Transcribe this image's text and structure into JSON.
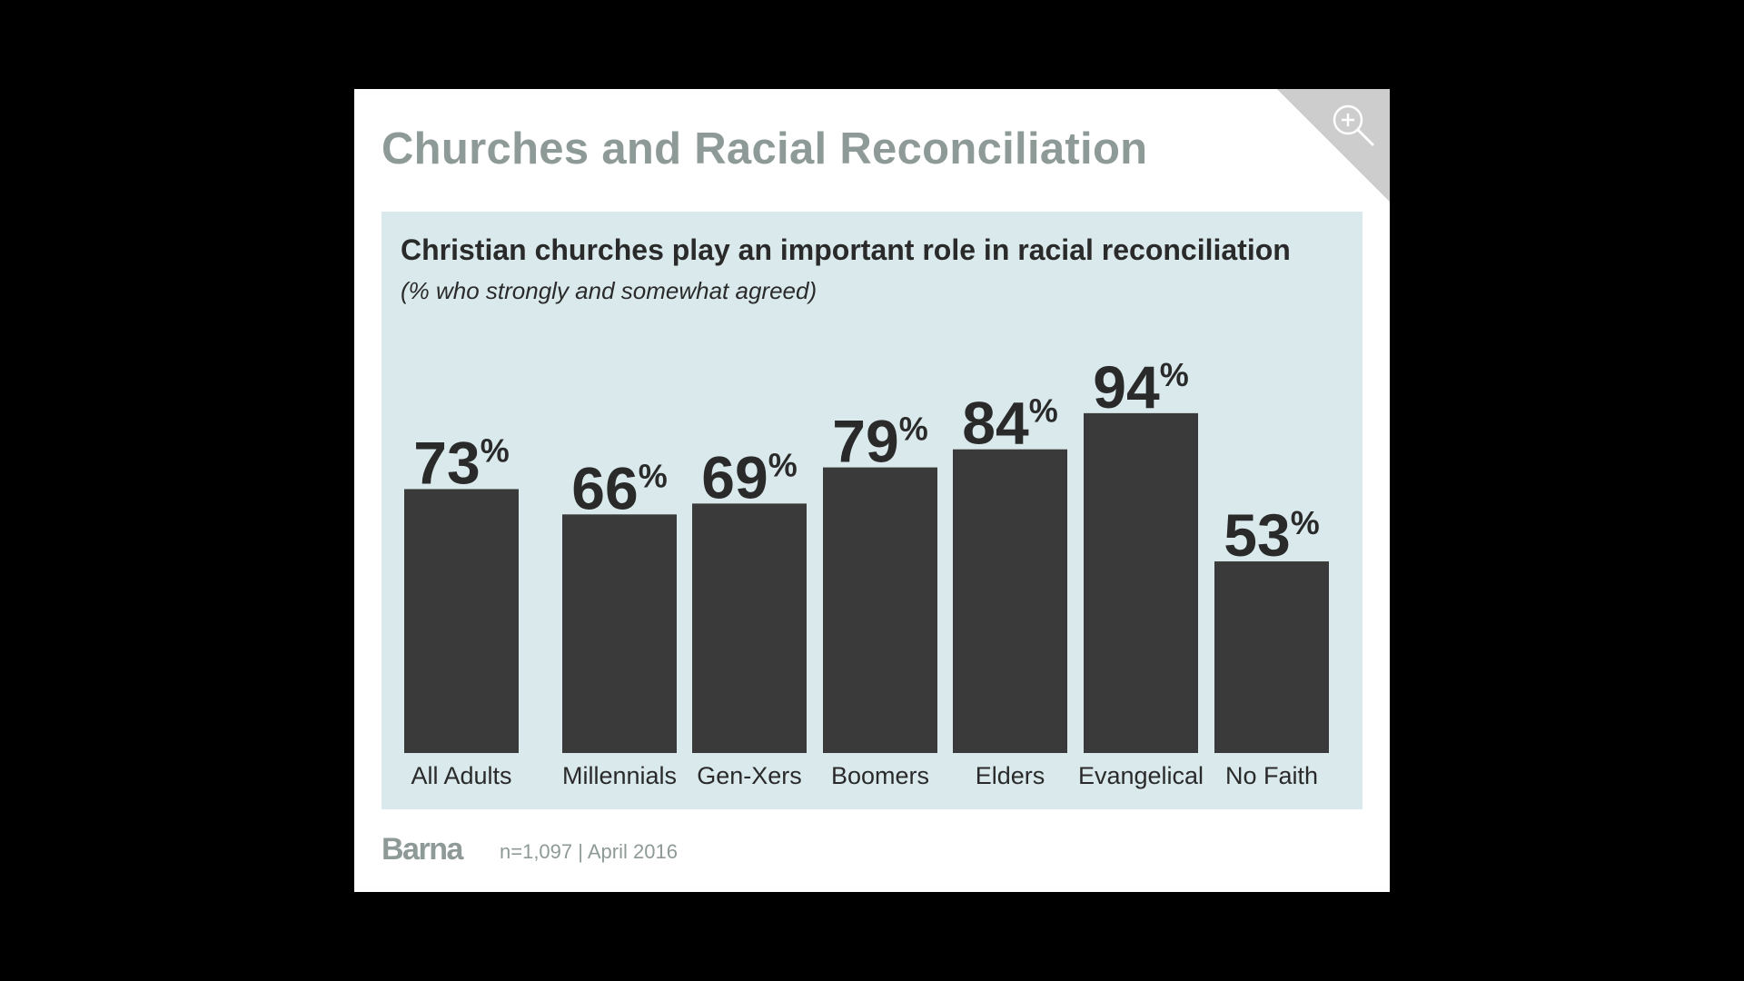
{
  "title": "Churches and Racial Reconciliation",
  "zoom_icon": "zoom-in-icon",
  "colors": {
    "bar": "#3a3a3a",
    "panel_bg": "#d9e9ec",
    "title": "#8e9a97",
    "label": "#2a2a2a"
  },
  "chart_data": {
    "type": "bar",
    "title": "Christian churches play an important role in racial reconciliation",
    "subtitle": "(% who strongly and somewhat agreed)",
    "categories": [
      "All Adults",
      "Millennials",
      "Gen-Xers",
      "Boomers",
      "Elders",
      "Evangelical",
      "No Faith"
    ],
    "values": [
      73,
      66,
      69,
      79,
      84,
      94,
      53
    ],
    "data_labels": [
      "73",
      "66",
      "69",
      "79",
      "84",
      "94",
      "53"
    ],
    "unit": "%",
    "ylim": [
      0,
      100
    ],
    "grid": false,
    "legend": "none"
  },
  "footer": {
    "brand": "Barna",
    "meta": "n=1,097 | April 2016"
  }
}
